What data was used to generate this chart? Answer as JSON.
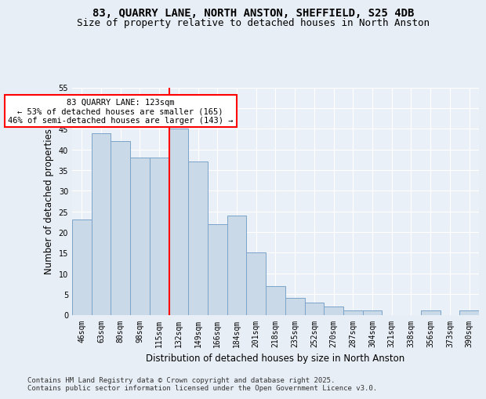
{
  "title_line1": "83, QUARRY LANE, NORTH ANSTON, SHEFFIELD, S25 4DB",
  "title_line2": "Size of property relative to detached houses in North Anston",
  "xlabel": "Distribution of detached houses by size in North Anston",
  "ylabel": "Number of detached properties",
  "categories": [
    "46sqm",
    "63sqm",
    "80sqm",
    "98sqm",
    "115sqm",
    "132sqm",
    "149sqm",
    "166sqm",
    "184sqm",
    "201sqm",
    "218sqm",
    "235sqm",
    "252sqm",
    "270sqm",
    "287sqm",
    "304sqm",
    "321sqm",
    "338sqm",
    "356sqm",
    "373sqm",
    "390sqm"
  ],
  "values": [
    23,
    44,
    42,
    38,
    38,
    45,
    37,
    22,
    24,
    15,
    7,
    4,
    3,
    2,
    1,
    1,
    0,
    0,
    1,
    0,
    1
  ],
  "bar_color": "#c9d9e8",
  "bar_edge_color": "#7ba3c8",
  "vline_x_index": 5,
  "vline_color": "red",
  "annotation_text": "83 QUARRY LANE: 123sqm\n← 53% of detached houses are smaller (165)\n46% of semi-detached houses are larger (143) →",
  "annotation_box_color": "white",
  "annotation_box_edge_color": "red",
  "ylim": [
    0,
    55
  ],
  "yticks": [
    0,
    5,
    10,
    15,
    20,
    25,
    30,
    35,
    40,
    45,
    50,
    55
  ],
  "bg_color": "#e8eef5",
  "plot_bg_color": "#eaf0f7",
  "footer_text": "Contains HM Land Registry data © Crown copyright and database right 2025.\nContains public sector information licensed under the Open Government Licence v3.0.",
  "title_fontsize": 10,
  "subtitle_fontsize": 9,
  "axis_label_fontsize": 8.5,
  "tick_fontsize": 7,
  "annotation_fontsize": 7.5,
  "footer_fontsize": 6.5
}
